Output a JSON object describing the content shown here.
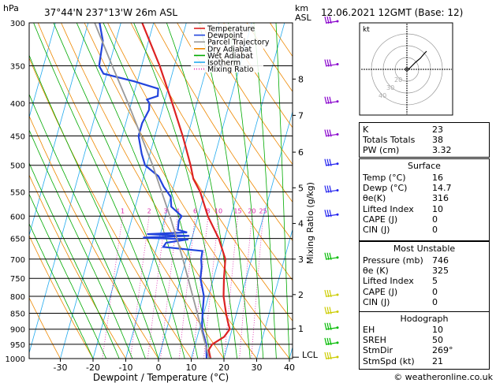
{
  "header": {
    "hpa_unit": "hPa",
    "location": "37°44'N  237°13'W  26m  ASL",
    "km_unit": "km",
    "asl_unit": "ASL",
    "datetime": "12.06.2021  12GMT  (Base: 12)"
  },
  "legend": {
    "items": [
      {
        "label": "Temperature",
        "color": "#dd2222",
        "style": "solid"
      },
      {
        "label": "Dewpoint",
        "color": "#2244dd",
        "style": "solid"
      },
      {
        "label": "Parcel Trajectory",
        "color": "#999999",
        "style": "solid"
      },
      {
        "label": "Dry Adiabat",
        "color": "#ee8800",
        "style": "solid"
      },
      {
        "label": "Wet Adiabat",
        "color": "#00aa00",
        "style": "solid"
      },
      {
        "label": "Isotherm",
        "color": "#22aaee",
        "style": "solid"
      },
      {
        "label": "Mixing Ratio",
        "color": "#dd22aa",
        "style": "dotted"
      }
    ]
  },
  "chart_data": {
    "type": "line",
    "subtype": "skew-T log-P diagram",
    "xlabel": "Dewpoint / Temperature (°C)",
    "ylabel_right": "Mixing Ratio (g/kg)",
    "x_ticks": [
      -30,
      -20,
      -10,
      0,
      10,
      20,
      30,
      40
    ],
    "pressure_levels": [
      300,
      350,
      400,
      450,
      500,
      550,
      600,
      650,
      700,
      750,
      800,
      850,
      900,
      950,
      1000
    ],
    "height_km_ticks": [
      {
        "label": "8",
        "p": 367
      },
      {
        "label": "7",
        "p": 418
      },
      {
        "label": "6",
        "p": 477
      },
      {
        "label": "5",
        "p": 542
      },
      {
        "label": "4",
        "p": 616
      },
      {
        "label": "3",
        "p": 700
      },
      {
        "label": "2",
        "p": 795
      },
      {
        "label": "1",
        "p": 898
      }
    ],
    "lcl_label": "LCL",
    "lcl_p": 995,
    "mixing_ratio_labels": [
      "1",
      "2",
      "3",
      "4",
      "6",
      "8",
      "10",
      "15",
      "20",
      "25"
    ],
    "mixing_ratio_values": [
      1,
      2,
      3,
      4,
      6,
      8,
      10,
      15,
      20,
      25
    ],
    "mixing_ratio_label_p": 600,
    "series": [
      {
        "name": "Temperature",
        "color": "#dd2222",
        "points": [
          [
            1000,
            15.9
          ],
          [
            970,
            14.6
          ],
          [
            950,
            15.2
          ],
          [
            925,
            18.2
          ],
          [
            900,
            19.3
          ],
          [
            875,
            18.0
          ],
          [
            850,
            16.8
          ],
          [
            800,
            14.6
          ],
          [
            750,
            13.2
          ],
          [
            700,
            12.0
          ],
          [
            650,
            8.2
          ],
          [
            600,
            3.0
          ],
          [
            550,
            -1.4
          ],
          [
            525,
            -4.6
          ],
          [
            500,
            -6.6
          ],
          [
            450,
            -11.5
          ],
          [
            400,
            -17.5
          ],
          [
            350,
            -24.5
          ],
          [
            300,
            -33.5
          ]
        ]
      },
      {
        "name": "Dewpoint",
        "color": "#2244dd",
        "points": [
          [
            1000,
            14.7
          ],
          [
            950,
            13.4
          ],
          [
            900,
            10.8
          ],
          [
            850,
            9.6
          ],
          [
            800,
            8.6
          ],
          [
            750,
            6.0
          ],
          [
            720,
            5.4
          ],
          [
            700,
            4.6
          ],
          [
            680,
            4.3
          ],
          [
            670,
            -8.0
          ],
          [
            660,
            -7.5
          ],
          [
            652,
            -1.0
          ],
          [
            648,
            -15.0
          ],
          [
            644,
            -1.0
          ],
          [
            640,
            -14.0
          ],
          [
            636,
            -2.0
          ],
          [
            630,
            -5.0
          ],
          [
            610,
            -5.5
          ],
          [
            600,
            -5.0
          ],
          [
            580,
            -9.0
          ],
          [
            560,
            -10.0
          ],
          [
            540,
            -13.0
          ],
          [
            520,
            -15.5
          ],
          [
            500,
            -20.5
          ],
          [
            480,
            -22.5
          ],
          [
            450,
            -25.0
          ],
          [
            430,
            -25.0
          ],
          [
            410,
            -24.0
          ],
          [
            400,
            -24.5
          ],
          [
            395,
            -25.5
          ],
          [
            390,
            -22.5
          ],
          [
            380,
            -23.0
          ],
          [
            370,
            -31.0
          ],
          [
            360,
            -41.0
          ],
          [
            350,
            -43.0
          ],
          [
            320,
            -44.0
          ],
          [
            300,
            -46.5
          ]
        ]
      },
      {
        "name": "Parcel Trajectory",
        "color": "#999999",
        "points": [
          [
            1000,
            15.9
          ],
          [
            995,
            15.2
          ],
          [
            950,
            13.1
          ],
          [
            900,
            10.6
          ],
          [
            850,
            8.0
          ],
          [
            800,
            5.2
          ],
          [
            750,
            2.2
          ],
          [
            700,
            -1.0
          ],
          [
            650,
            -4.6
          ],
          [
            600,
            -8.6
          ],
          [
            550,
            -13.2
          ],
          [
            500,
            -18.2
          ],
          [
            450,
            -24.2
          ],
          [
            400,
            -31.0
          ],
          [
            350,
            -39.0
          ],
          [
            300,
            -48.0
          ]
        ]
      }
    ],
    "winds": [
      {
        "p": 1000,
        "color": "#cccc00"
      },
      {
        "p": 950,
        "color": "#00bb00"
      },
      {
        "p": 900,
        "color": "#00bb00"
      },
      {
        "p": 850,
        "color": "#cccc00"
      },
      {
        "p": 800,
        "color": "#cccc00"
      },
      {
        "p": 700,
        "color": "#00bb00"
      },
      {
        "p": 600,
        "color": "#2222ee"
      },
      {
        "p": 550,
        "color": "#2222ee"
      },
      {
        "p": 500,
        "color": "#2222ee"
      },
      {
        "p": 450,
        "color": "#8800cc"
      },
      {
        "p": 400,
        "color": "#8800cc"
      },
      {
        "p": 350,
        "color": "#8800cc"
      },
      {
        "p": 300,
        "color": "#8800cc"
      }
    ]
  },
  "hodograph": {
    "unit": "kt",
    "ring_labels": [
      "20",
      "30",
      "40"
    ]
  },
  "indices": {
    "rows": [
      {
        "label": "K",
        "value": "23"
      },
      {
        "label": "Totals Totals",
        "value": "38"
      },
      {
        "label": "PW (cm)",
        "value": "3.32"
      }
    ]
  },
  "surface": {
    "title": "Surface",
    "rows": [
      {
        "label": "Temp (°C)",
        "value": "16"
      },
      {
        "label": "Dewp (°C)",
        "value": "14.7"
      },
      {
        "label": "θe(K)",
        "value": "316"
      },
      {
        "label": "Lifted Index",
        "value": "10"
      },
      {
        "label": "CAPE (J)",
        "value": "0"
      },
      {
        "label": "CIN (J)",
        "value": "0"
      }
    ]
  },
  "most_unstable": {
    "title": "Most Unstable",
    "rows": [
      {
        "label": "Pressure (mb)",
        "value": "746"
      },
      {
        "label": "θe (K)",
        "value": "325"
      },
      {
        "label": "Lifted Index",
        "value": "5"
      },
      {
        "label": "CAPE (J)",
        "value": "0"
      },
      {
        "label": "CIN (J)",
        "value": "0"
      }
    ]
  },
  "hodo_table": {
    "title": "Hodograph",
    "rows": [
      {
        "label": "EH",
        "value": "10"
      },
      {
        "label": "SREH",
        "value": "50"
      },
      {
        "label": "StmDir",
        "value": "269°"
      },
      {
        "label": "StmSpd (kt)",
        "value": "21"
      }
    ]
  },
  "footer": {
    "copyright": "© weatheronline.co.uk"
  }
}
